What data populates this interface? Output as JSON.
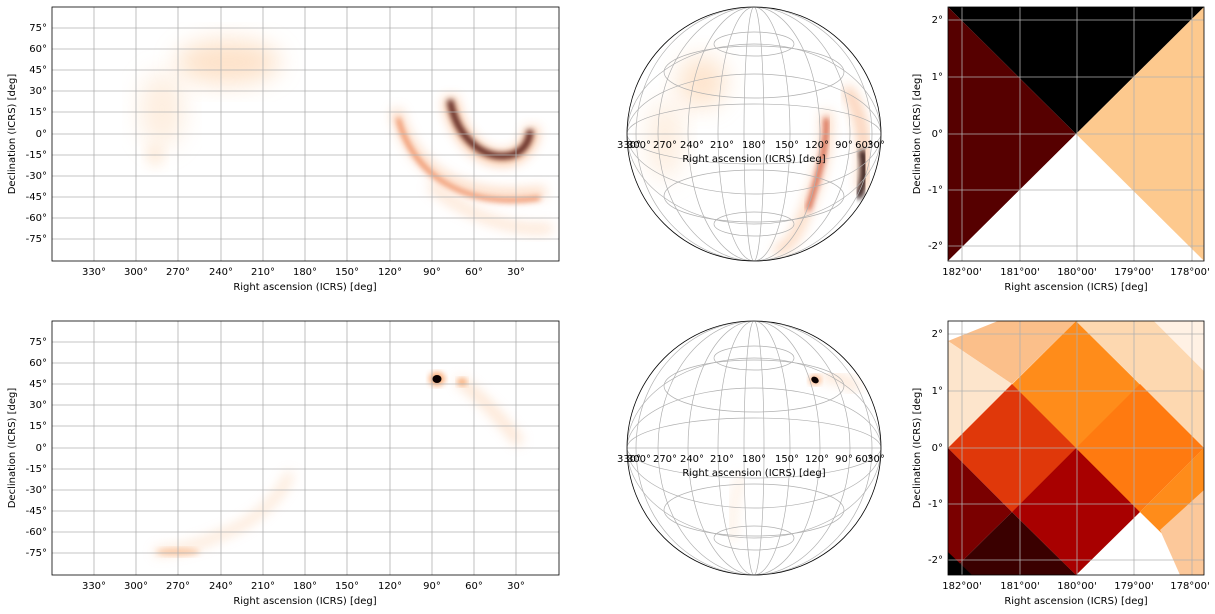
{
  "chart_data": [
    {
      "type": "heatmap",
      "projection": "plate-carree",
      "xlabel": "Right ascension (ICRS) [deg]",
      "ylabel": "Declination (ICRS) [deg]",
      "xticks": [
        "330°",
        "300°",
        "270°",
        "240°",
        "210°",
        "180°",
        "150°",
        "120°",
        "90°",
        "60°",
        "30°"
      ],
      "xtick_values": [
        330,
        300,
        270,
        240,
        210,
        180,
        150,
        120,
        90,
        60,
        30
      ],
      "yticks": [
        "75°",
        "60°",
        "45°",
        "30°",
        "15°",
        "0°",
        "-15°",
        "-30°",
        "-45°",
        "-60°",
        "-75°"
      ],
      "ytick_values": [
        75,
        60,
        45,
        30,
        15,
        0,
        -15,
        -30,
        -45,
        -60,
        -75
      ],
      "xlim": [
        360,
        0
      ],
      "ylim": [
        -90,
        90
      ],
      "colormap": "gist_heat_r",
      "grid": true,
      "features": [
        {
          "kind": "blob",
          "ra": 230,
          "dec": 45,
          "ra_sigma": 30,
          "dec_sigma": 12,
          "intensity": 0.18
        },
        {
          "kind": "blob",
          "ra": 290,
          "dec": 10,
          "ra_sigma": 18,
          "dec_sigma": 20,
          "intensity": 0.12
        },
        {
          "kind": "blob",
          "ra": 275,
          "dec": -18,
          "ra_sigma": 8,
          "dec_sigma": 8,
          "intensity": 0.12
        },
        {
          "kind": "arc",
          "center_ra": 62,
          "center_dec": 7,
          "radius_ra": 18,
          "radius_dec": 27,
          "from_deg": 180,
          "to_deg": 360,
          "width": 5,
          "intensity": 1.0
        },
        {
          "kind": "arc",
          "center_ra": 60,
          "center_dec": -5,
          "radius_ra": 55,
          "radius_dec": 48,
          "from_deg": 200,
          "to_deg": 335,
          "width": 3,
          "intensity": 0.7
        },
        {
          "kind": "arc",
          "center_ra": 60,
          "center_dec": 0,
          "radius_ra": 62,
          "radius_dec": 65,
          "from_deg": 210,
          "to_deg": 300,
          "width": 3,
          "intensity": 0.3
        }
      ]
    },
    {
      "type": "heatmap",
      "projection": "orthographic",
      "xlabel": "Right ascension (ICRS) [deg]",
      "xticks": [
        "330°",
        "300°",
        "270°",
        "240°",
        "210°",
        "180°",
        "150°",
        "120°",
        "90°",
        "60°",
        "30°"
      ],
      "colormap": "gist_heat_r",
      "grid": true
    },
    {
      "type": "heatmap",
      "projection": "zoom",
      "xlabel": "Right ascension (ICRS) [deg]",
      "ylabel": "Declination (ICRS) [deg]",
      "xticks": [
        "182°00'",
        "181°00'",
        "180°00'",
        "179°00'",
        "178°00'"
      ],
      "xtick_values": [
        182,
        181,
        180,
        179,
        178
      ],
      "yticks": [
        "2°",
        "1°",
        "0°",
        "-1°",
        "-2°"
      ],
      "ytick_values": [
        2,
        1,
        0,
        -1,
        -2
      ],
      "xlim": [
        182.2,
        177.8
      ],
      "ylim": [
        -2.2,
        2.2
      ],
      "colormap": "gist_heat_r",
      "grid": true,
      "cells": [
        {
          "region": "top",
          "color": "#000000"
        },
        {
          "region": "left",
          "color": "#560000"
        },
        {
          "region": "right",
          "color": "#fdc98e"
        },
        {
          "region": "bottom",
          "color": "#ffffff"
        }
      ]
    },
    {
      "type": "heatmap",
      "projection": "plate-carree",
      "xlabel": "Right ascension (ICRS) [deg]",
      "ylabel": "Declination (ICRS) [deg]",
      "xticks": [
        "330°",
        "300°",
        "270°",
        "240°",
        "210°",
        "180°",
        "150°",
        "120°",
        "90°",
        "60°",
        "30°"
      ],
      "xtick_values": [
        330,
        300,
        270,
        240,
        210,
        180,
        150,
        120,
        90,
        60,
        30
      ],
      "yticks": [
        "75°",
        "60°",
        "45°",
        "30°",
        "15°",
        "0°",
        "-15°",
        "-30°",
        "-45°",
        "-60°",
        "-75°"
      ],
      "ytick_values": [
        75,
        60,
        45,
        30,
        15,
        0,
        -15,
        -30,
        -45,
        -60,
        -75
      ],
      "xlim": [
        360,
        0
      ],
      "ylim": [
        -90,
        90
      ],
      "colormap": "gist_heat_r",
      "grid": true,
      "features": [
        {
          "kind": "blob",
          "ra": 88,
          "dec": 48,
          "ra_sigma": 2.5,
          "dec_sigma": 2.5,
          "intensity": 1.0
        },
        {
          "kind": "track",
          "points": [
            [
              75,
              46
            ],
            [
              62,
              35
            ],
            [
              50,
              20
            ],
            [
              40,
              5
            ]
          ],
          "width": 3,
          "intensity": 0.3
        },
        {
          "kind": "track",
          "points": [
            [
              197,
              -25
            ],
            [
              210,
              -45
            ],
            [
              230,
              -60
            ],
            [
              250,
              -68
            ],
            [
              265,
              -74
            ],
            [
              285,
              -74
            ]
          ],
          "width": 3,
          "intensity": 0.25
        }
      ]
    },
    {
      "type": "heatmap",
      "projection": "orthographic",
      "xlabel": "Right ascension (ICRS) [deg]",
      "xticks": [
        "330°",
        "300°",
        "270°",
        "240°",
        "210°",
        "180°",
        "150°",
        "120°",
        "90°",
        "60°",
        "30°"
      ],
      "colormap": "gist_heat_r",
      "grid": true
    },
    {
      "type": "heatmap",
      "projection": "zoom",
      "xlabel": "Right ascension (ICRS) [deg]",
      "ylabel": "Declination (ICRS) [deg]",
      "xticks": [
        "182°00'",
        "181°00'",
        "180°00'",
        "179°00'",
        "178°00'"
      ],
      "xtick_values": [
        182,
        181,
        180,
        179,
        178
      ],
      "yticks": [
        "2°",
        "1°",
        "0°",
        "-1°",
        "-2°"
      ],
      "ytick_values": [
        2,
        1,
        0,
        -1,
        -2
      ],
      "xlim": [
        182.2,
        177.8
      ],
      "ylim": [
        -2.2,
        2.2
      ],
      "colormap": "gist_heat_r",
      "grid": true
    }
  ]
}
